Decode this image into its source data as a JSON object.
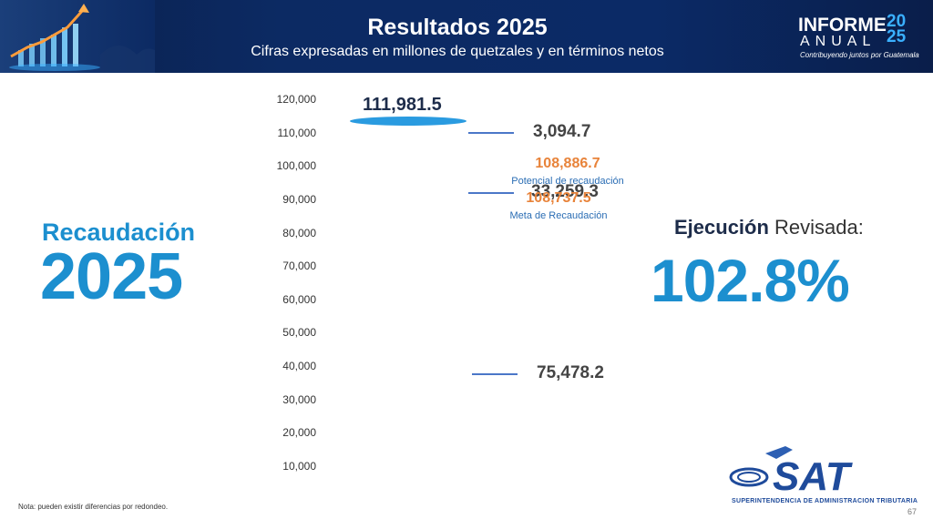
{
  "header": {
    "title": "Resultados 2025",
    "subtitle": "Cifras expresadas en millones de quetzales y en términos netos",
    "logo_word1": "INFORME",
    "logo_word2": "ANUAL",
    "logo_year": "20 25",
    "logo_tagline": "Contribuyendo juntos por Guatemala"
  },
  "left": {
    "label": "Recaudación",
    "year": "2025"
  },
  "right": {
    "ejecucion_bold": "Ejecución",
    "ejecucion_rest": " Revisada:",
    "percent": "102.8%"
  },
  "chart_data": {
    "type": "bar",
    "y_ticks": [
      "10,000",
      "20,000",
      "30,000",
      "40,000",
      "50,000",
      "60,000",
      "70,000",
      "80,000",
      "90,000",
      "100,000",
      "110,000",
      "120,000"
    ],
    "ylim": [
      10000,
      120000
    ],
    "total": {
      "value": 111981.5,
      "label": "111,981.5"
    },
    "segments": [
      {
        "value": 75478.2,
        "label": "75,478.2"
      },
      {
        "value": 33259.3,
        "label": "33,259.3"
      },
      {
        "value": 3094.7,
        "label": "3,094.7"
      }
    ],
    "annotations": [
      {
        "value": 108886.7,
        "label": "108,886.7",
        "caption": "Potencial de recaudación"
      },
      {
        "value": 108737.5,
        "label": "108,737.5",
        "caption": "Meta de Recaudación"
      }
    ]
  },
  "colors": {
    "accent_blue": "#1c8fcf",
    "orange": "#e8833a",
    "header_bg": "#0c2a63"
  },
  "footer": {
    "note": "Nota: pueden existir diferencias por redondeo.",
    "page": "67",
    "sat_logo": "SAT",
    "sat_subtitle": "SUPERINTENDENCIA DE ADMINISTRACION TRIBUTARIA"
  }
}
